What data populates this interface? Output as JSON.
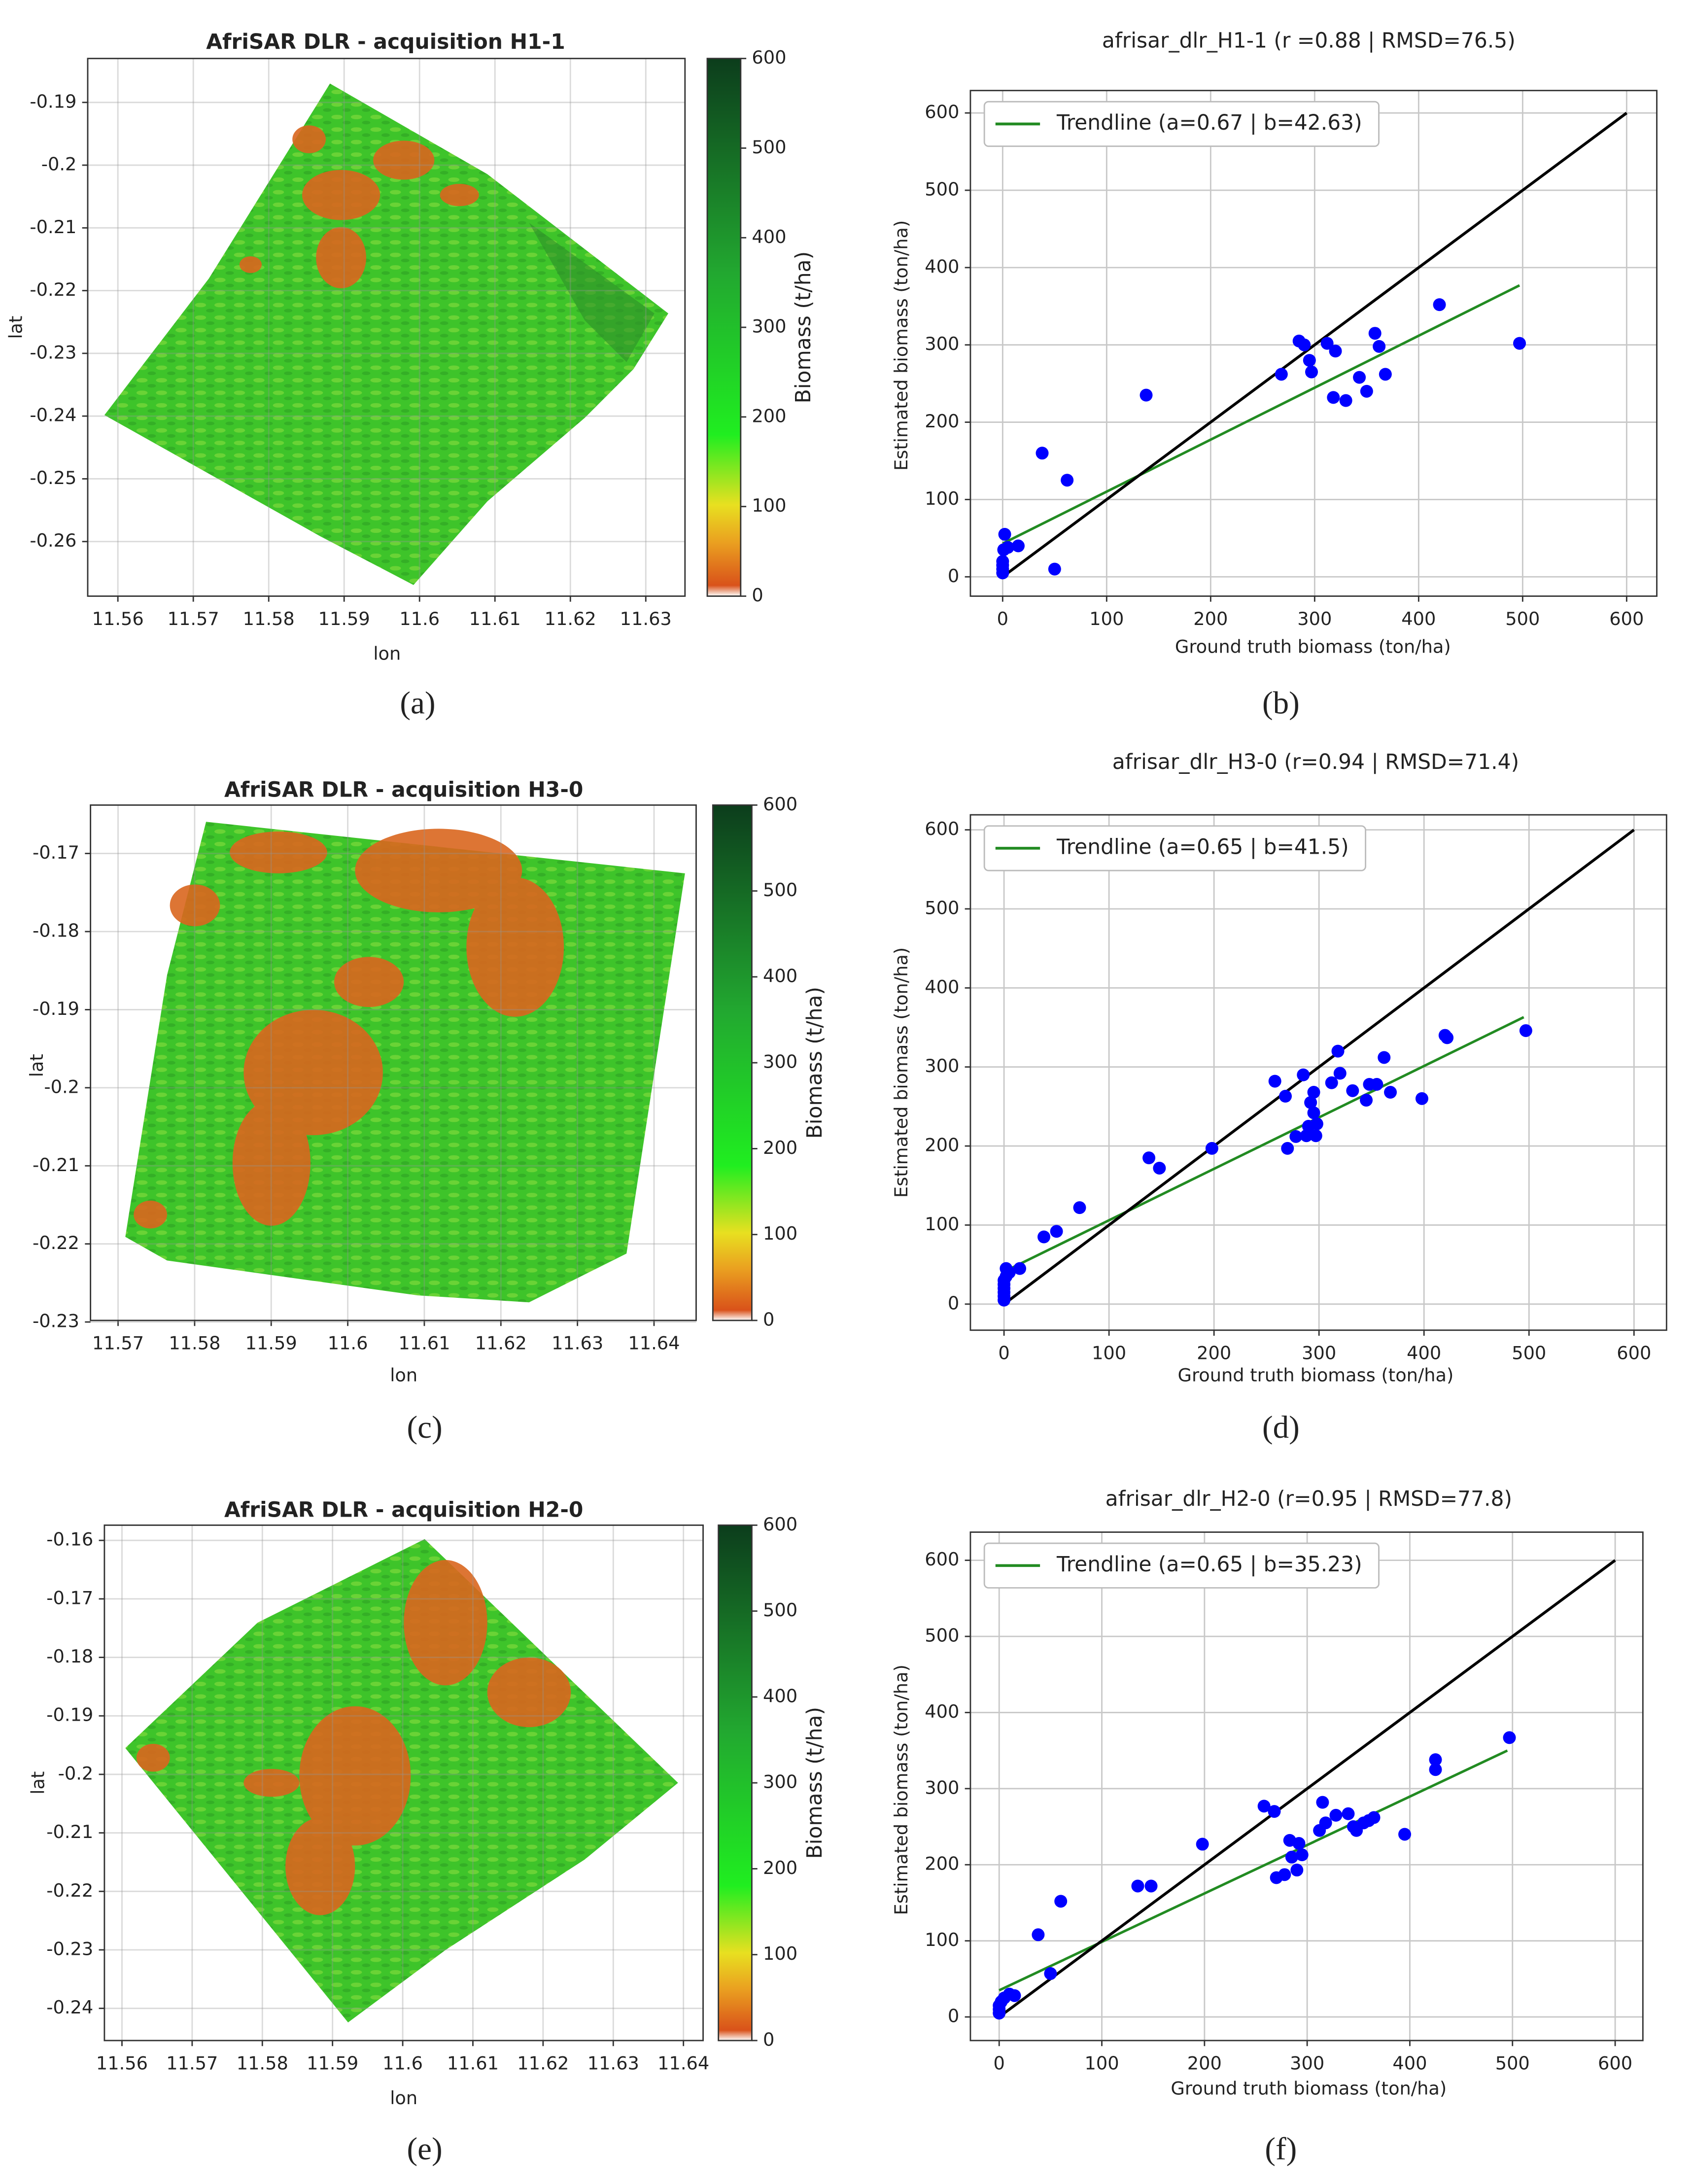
{
  "chart_data": [
    {
      "type": "map",
      "title": "AfriSAR DLR - acquisition H1-1",
      "panel_label": "(a)",
      "xlabel": "lon",
      "ylabel": "lat",
      "xlim": [
        11.556,
        11.6352
      ],
      "ylim": [
        -0.2687,
        -0.183
      ],
      "xticks": [
        11.56,
        11.57,
        11.58,
        11.59,
        11.6,
        11.61,
        11.62,
        11.63
      ],
      "yticks": [
        -0.19,
        -0.2,
        -0.21,
        -0.22,
        -0.23,
        -0.24,
        -0.25,
        -0.26
      ],
      "grid": true,
      "colorbar": {
        "label": "Biomass (t/ha)",
        "lim": [
          0,
          600
        ],
        "ticks": [
          0,
          100,
          200,
          300,
          400,
          500,
          600
        ]
      }
    },
    {
      "type": "scatter",
      "title": "afrisar_dlr_H1-1 (r =0.88 | RMSD=76.5)",
      "panel_label": "(b)",
      "xlabel": "Ground truth biomass (ton/ha)",
      "ylabel": "Estimated biomass (ton/ha)",
      "xlim": [
        -31,
        629
      ],
      "ylim": [
        -25,
        629
      ],
      "xticks": [
        0,
        100,
        200,
        300,
        400,
        500,
        600
      ],
      "yticks": [
        0,
        100,
        200,
        300,
        400,
        500,
        600
      ],
      "grid": true,
      "legend": "upper left",
      "series": [
        {
          "type": "scatter",
          "color": "#0000ff",
          "x": [
            0,
            0,
            0,
            0,
            1,
            2,
            5,
            15,
            38,
            50,
            62,
            138,
            268,
            285,
            290,
            295,
            297,
            312,
            318,
            320,
            330,
            343,
            350,
            358,
            362,
            368,
            420,
            497
          ],
          "values": [
            5,
            10,
            15,
            20,
            35,
            55,
            38,
            40,
            160,
            10,
            125,
            235,
            262,
            305,
            300,
            280,
            265,
            302,
            232,
            292,
            228,
            258,
            240,
            315,
            298,
            262,
            352,
            302
          ]
        },
        {
          "name": "Trendline (a=0.67 | b=42.63)",
          "type": "line",
          "color": "#228b22",
          "x": [
            0,
            497
          ],
          "values": [
            43,
            377
          ]
        },
        {
          "type": "line",
          "color": "#000000",
          "x": [
            0,
            600
          ],
          "values": [
            0,
            600
          ]
        }
      ]
    },
    {
      "type": "map",
      "title": "AfriSAR DLR - acquisition H3-0",
      "panel_label": "(c)",
      "xlabel": "lon",
      "ylabel": "lat",
      "xlim": [
        11.5664,
        11.6455
      ],
      "ylim": [
        -0.2298,
        -0.1638
      ],
      "xticks": [
        11.57,
        11.58,
        11.59,
        11.6,
        11.61,
        11.62,
        11.63,
        11.64
      ],
      "yticks": [
        -0.17,
        -0.18,
        -0.19,
        -0.2,
        -0.21,
        -0.22,
        -0.23
      ],
      "grid": true,
      "colorbar": {
        "label": "Biomass (t/ha)",
        "lim": [
          0,
          600
        ],
        "ticks": [
          0,
          100,
          200,
          300,
          400,
          500,
          600
        ]
      }
    },
    {
      "type": "scatter",
      "title": "afrisar_dlr_H3-0 (r=0.94 | RMSD=71.4)",
      "panel_label": "(d)",
      "xlabel": "Ground truth biomass (ton/ha)",
      "ylabel": "Estimated biomass (ton/ha)",
      "xlim": [
        -32,
        631
      ],
      "ylim": [
        -33,
        619
      ],
      "xticks": [
        0,
        100,
        200,
        300,
        400,
        500,
        600
      ],
      "yticks": [
        0,
        100,
        200,
        300,
        400,
        500,
        600
      ],
      "grid": true,
      "legend": "upper left",
      "series": [
        {
          "type": "scatter",
          "color": "#0000ff",
          "x": [
            0,
            0,
            0,
            0,
            0,
            0,
            2,
            2,
            5,
            15,
            38,
            50,
            72,
            138,
            148,
            198,
            258,
            268,
            270,
            278,
            285,
            288,
            290,
            292,
            295,
            295,
            297,
            298,
            312,
            318,
            320,
            332,
            345,
            348,
            355,
            362,
            368,
            398,
            420,
            422,
            497
          ],
          "values": [
            5,
            10,
            15,
            20,
            25,
            30,
            35,
            45,
            40,
            45,
            85,
            92,
            122,
            185,
            172,
            197,
            282,
            263,
            197,
            212,
            290,
            213,
            225,
            255,
            242,
            268,
            213,
            228,
            280,
            320,
            292,
            270,
            258,
            278,
            278,
            312,
            268,
            260,
            340,
            337,
            346
          ]
        },
        {
          "name": "Trendline (a=0.65 | b=41.5)",
          "type": "line",
          "color": "#228b22",
          "x": [
            0,
            495
          ],
          "values": [
            41,
            363
          ]
        },
        {
          "type": "line",
          "color": "#000000",
          "x": [
            0,
            600
          ],
          "values": [
            0,
            600
          ]
        }
      ]
    },
    {
      "type": "map",
      "title": "AfriSAR DLR - acquisition H2-0",
      "panel_label": "(e)",
      "xlabel": "lon",
      "ylabel": "lat",
      "xlim": [
        11.5575,
        11.6428
      ],
      "ylim": [
        -0.2455,
        -0.1574
      ],
      "xticks": [
        11.56,
        11.57,
        11.58,
        11.59,
        11.6,
        11.61,
        11.62,
        11.63,
        11.64
      ],
      "yticks": [
        -0.16,
        -0.17,
        -0.18,
        -0.19,
        -0.2,
        -0.21,
        -0.22,
        -0.23,
        -0.24
      ],
      "grid": true,
      "colorbar": {
        "label": "Biomass (t/ha)",
        "lim": [
          0,
          600
        ],
        "ticks": [
          0,
          100,
          200,
          300,
          400,
          500,
          600
        ]
      }
    },
    {
      "type": "scatter",
      "title": "afrisar_dlr_H2-0 (r=0.95 | RMSD=77.8)",
      "panel_label": "(f)",
      "xlabel": "Ground truth biomass (ton/ha)",
      "ylabel": "Estimated biomass (ton/ha)",
      "xlim": [
        -28,
        627
      ],
      "ylim": [
        -31,
        637
      ],
      "xticks": [
        0,
        100,
        200,
        300,
        400,
        500,
        600
      ],
      "yticks": [
        0,
        100,
        200,
        300,
        400,
        500,
        600
      ],
      "grid": true,
      "legend": "upper left",
      "series": [
        {
          "type": "scatter",
          "color": "#0000ff",
          "x": [
            0,
            0,
            0,
            2,
            5,
            10,
            15,
            38,
            50,
            60,
            135,
            148,
            198,
            258,
            268,
            270,
            278,
            283,
            285,
            290,
            292,
            295,
            312,
            315,
            318,
            328,
            340,
            345,
            348,
            355,
            360,
            365,
            395,
            425,
            425,
            497
          ],
          "values": [
            5,
            10,
            15,
            20,
            25,
            30,
            28,
            108,
            57,
            152,
            172,
            172,
            227,
            277,
            270,
            183,
            187,
            232,
            210,
            193,
            228,
            213,
            245,
            282,
            255,
            265,
            267,
            250,
            245,
            255,
            258,
            262,
            240,
            325,
            338,
            367
          ]
        },
        {
          "name": "Trendline (a=0.65 | b=35.23)",
          "type": "line",
          "color": "#228b22",
          "x": [
            0,
            495
          ],
          "values": [
            35,
            350
          ]
        },
        {
          "type": "line",
          "color": "#000000",
          "x": [
            0,
            600
          ],
          "values": [
            0,
            600
          ]
        }
      ]
    }
  ]
}
